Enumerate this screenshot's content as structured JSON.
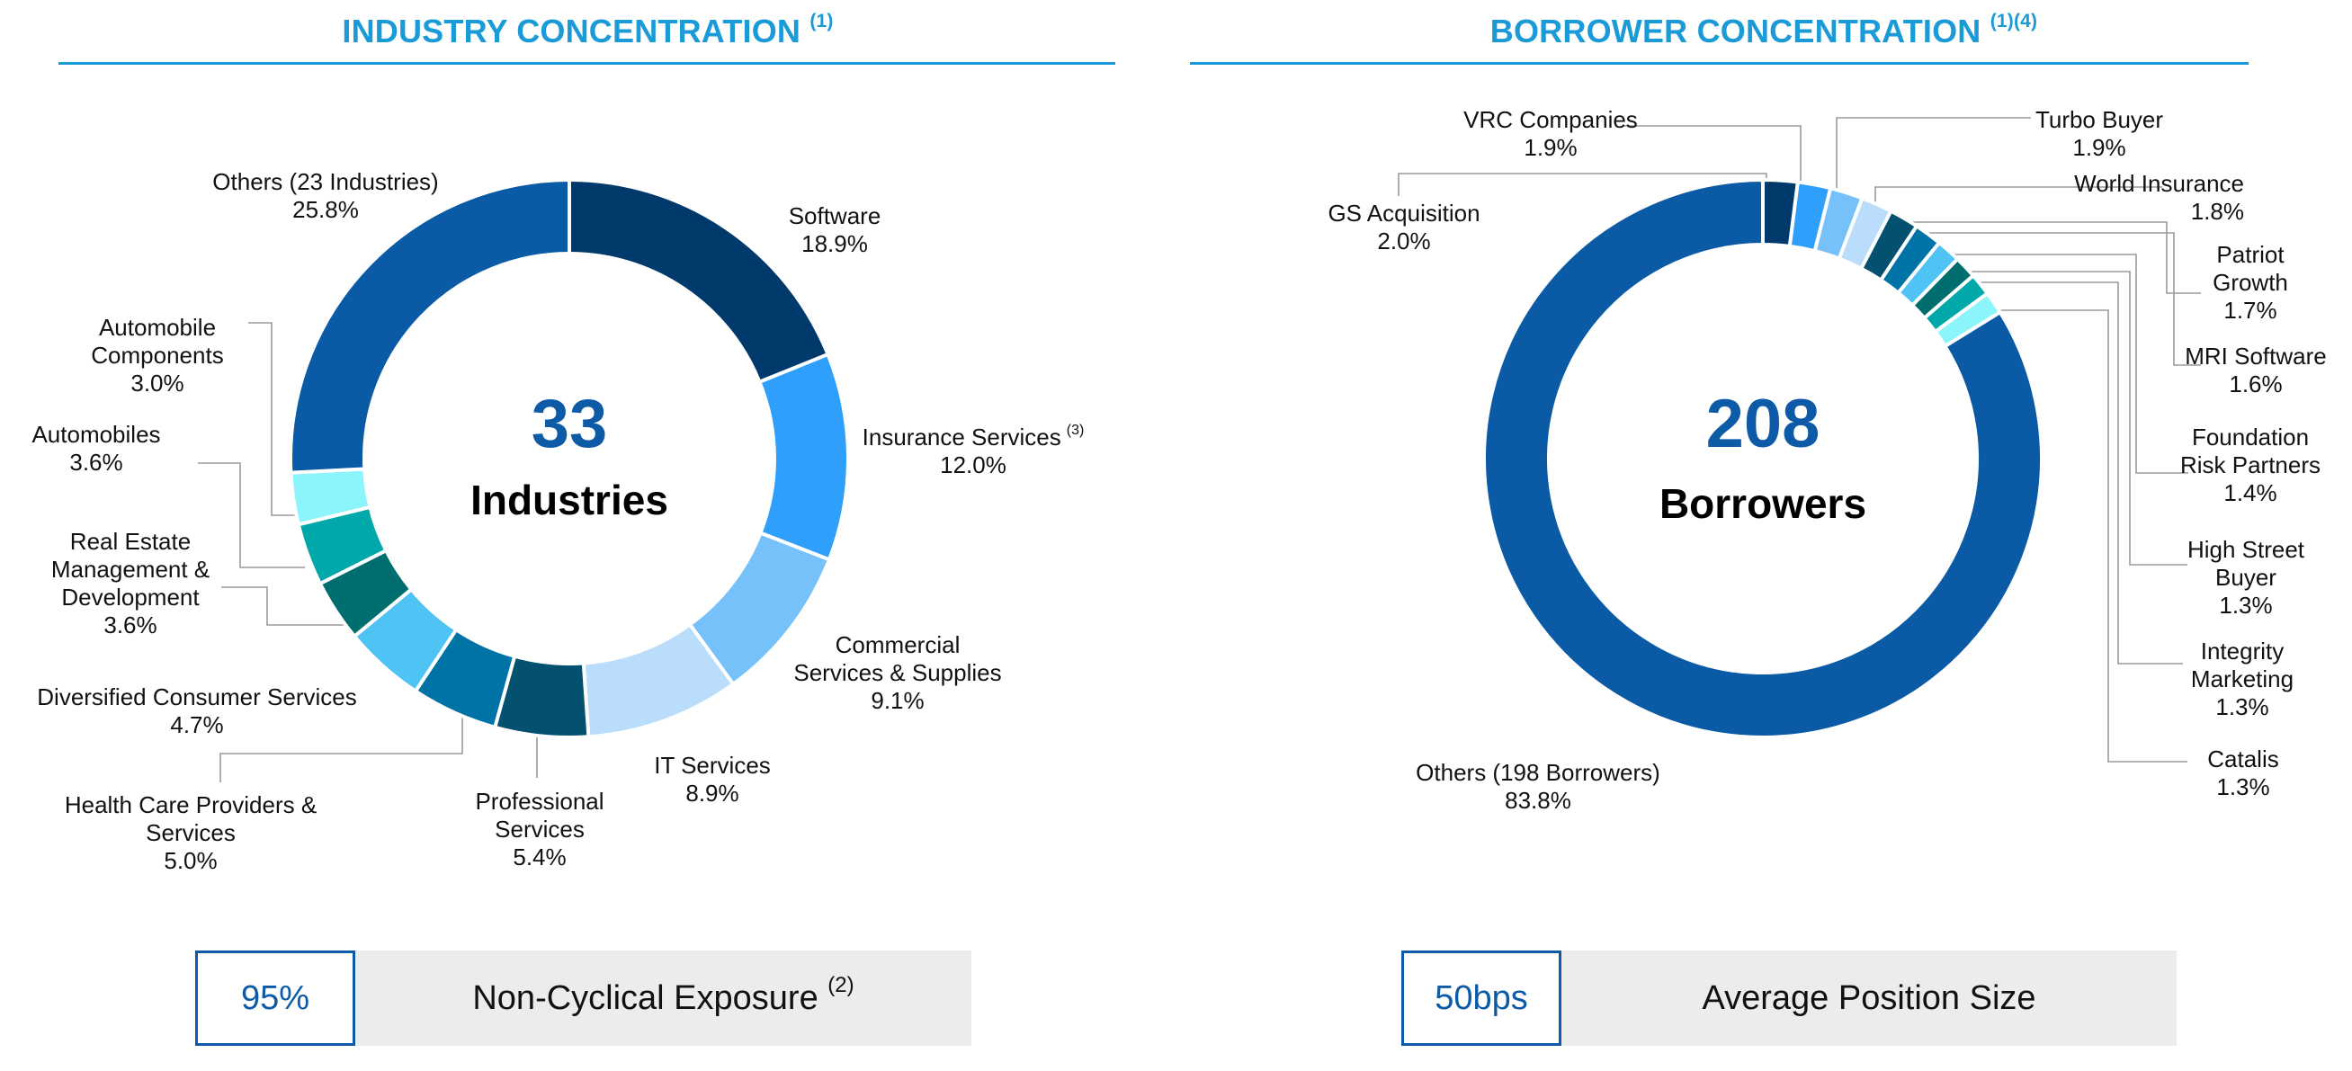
{
  "industry": {
    "title": "INDUSTRY CONCENTRATION",
    "title_note": "(1)",
    "center_value": "33",
    "center_label": "Industries",
    "stat_value": "95%",
    "stat_label": "Non-Cyclical Exposure",
    "stat_note": "(2)"
  },
  "borrower": {
    "title": "BORROWER CONCENTRATION",
    "title_note": "(1)(4)",
    "center_value": "208",
    "center_label": "Borrowers",
    "stat_value": "50bps",
    "stat_label": "Average Position Size"
  },
  "chart_data": [
    {
      "type": "pie",
      "title": "INDUSTRY CONCENTRATION (1)",
      "unit": "%",
      "slices": [
        {
          "lines": [
            "Software"
          ],
          "value": 18.9,
          "pct": "18.9%",
          "color": "#003a6c"
        },
        {
          "lines": [
            "Insurance Services"
          ],
          "sup": "(3)",
          "value": 12.0,
          "pct": "12.0%",
          "color": "#2e9ffb"
        },
        {
          "lines": [
            "Commercial",
            "Services & Supplies"
          ],
          "value": 9.1,
          "pct": "9.1%",
          "color": "#77c1fb"
        },
        {
          "lines": [
            "IT Services"
          ],
          "value": 8.9,
          "pct": "8.9%",
          "color": "#b9ddfa"
        },
        {
          "lines": [
            "Professional",
            "Services"
          ],
          "value": 5.4,
          "pct": "5.4%",
          "color": "#03506f"
        },
        {
          "lines": [
            "Health Care Providers &",
            "Services"
          ],
          "value": 5.0,
          "pct": "5.0%",
          "color": "#0073a6"
        },
        {
          "lines": [
            "Diversified Consumer Services"
          ],
          "value": 4.7,
          "pct": "4.7%",
          "color": "#4fc3f4"
        },
        {
          "lines": [
            "Real Estate",
            "Management &",
            "Development"
          ],
          "value": 3.6,
          "pct": "3.6%",
          "color": "#006d6f"
        },
        {
          "lines": [
            "Automobiles"
          ],
          "value": 3.6,
          "pct": "3.6%",
          "color": "#00a8a9"
        },
        {
          "lines": [
            "Automobile",
            "Components"
          ],
          "value": 3.0,
          "pct": "3.0%",
          "color": "#8cf5fb"
        },
        {
          "lines": [
            "Others (23 Industries)"
          ],
          "value": 25.8,
          "pct": "25.8%",
          "color": "#0a5aa6"
        }
      ]
    },
    {
      "type": "pie",
      "title": "BORROWER CONCENTRATION (1)(4)",
      "unit": "%",
      "slices": [
        {
          "lines": [
            "GS Acquisition"
          ],
          "value": 2.0,
          "pct": "2.0%",
          "color": "#003a6c"
        },
        {
          "lines": [
            "VRC Companies"
          ],
          "value": 1.9,
          "pct": "1.9%",
          "color": "#2e9ffb"
        },
        {
          "lines": [
            "Turbo Buyer"
          ],
          "value": 1.9,
          "pct": "1.9%",
          "color": "#77c1fb"
        },
        {
          "lines": [
            "World Insurance"
          ],
          "value": 1.8,
          "pct": "1.8%",
          "color": "#b9ddfa"
        },
        {
          "lines": [
            "Patriot",
            "Growth"
          ],
          "value": 1.7,
          "pct": "1.7%",
          "color": "#03506f"
        },
        {
          "lines": [
            "MRI Software"
          ],
          "value": 1.6,
          "pct": "1.6%",
          "color": "#0073a6"
        },
        {
          "lines": [
            "Foundation",
            "Risk Partners"
          ],
          "value": 1.4,
          "pct": "1.4%",
          "color": "#4fc3f4"
        },
        {
          "lines": [
            "High Street",
            "Buyer"
          ],
          "value": 1.3,
          "pct": "1.3%",
          "color": "#006d6f"
        },
        {
          "lines": [
            "Integrity",
            "Marketing"
          ],
          "value": 1.3,
          "pct": "1.3%",
          "color": "#00a8a9"
        },
        {
          "lines": [
            "Catalis"
          ],
          "value": 1.3,
          "pct": "1.3%",
          "color": "#8cf5fb"
        },
        {
          "lines": [
            "Others (198 Borrowers)"
          ],
          "value": 83.8,
          "pct": "83.8%",
          "color": "#0a5aa6"
        }
      ]
    }
  ]
}
